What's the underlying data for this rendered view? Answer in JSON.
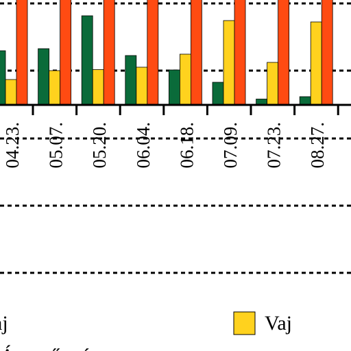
{
  "chart_data": {
    "type": "bar",
    "categories": [
      "04.23.",
      "05.07.",
      "05.20.",
      "06.04.",
      "06.18.",
      "07.09.",
      "07.23.",
      "08.27."
    ],
    "series": [
      {
        "key": "green",
        "color": "#0a6b3a",
        "values": [
          1.58,
          1.64,
          2.6,
          1.44,
          1.02,
          0.66,
          0.17,
          0.24
        ]
      },
      {
        "name": "Vaj",
        "key": "yellow",
        "color": "#ffd21e",
        "values": [
          0.74,
          1.0,
          1.03,
          1.1,
          1.48,
          2.46,
          1.24,
          2.42
        ]
      },
      {
        "key": "red",
        "color": "#ff4b12",
        "values": [
          4.0,
          4.0,
          4.0,
          4.0,
          4.0,
          4.0,
          4.0,
          4.0
        ]
      }
    ],
    "ylim": [
      0,
      3.0
    ],
    "grid": true,
    "legend": {
      "position": "bottom",
      "items": [
        {
          "label": "aj",
          "color": ""
        },
        {
          "label": "Vaj",
          "color": "#ffd21e"
        }
      ]
    },
    "cut_off_text": "Átvevő    át"
  }
}
